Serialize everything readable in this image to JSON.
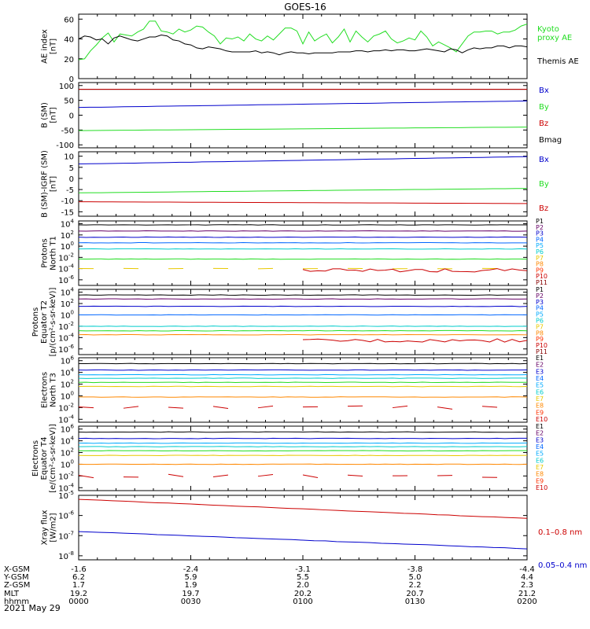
{
  "title": "GOES-16",
  "colors": {
    "black": "#000000",
    "blue": "#0000cc",
    "green": "#22dd22",
    "red": "#cc0000",
    "kyoto": "#22dd22",
    "cyan": "#00cccc",
    "yellow": "#e8c800",
    "orange": "#ff8800",
    "purple": "#8800aa",
    "darkred": "#880000",
    "skyblue": "#00aaff",
    "p_labels": [
      "#000000",
      "#660066",
      "#0000cc",
      "#0066ff",
      "#00aaff",
      "#00cccc",
      "#e8c800",
      "#ff8800",
      "#ff3300",
      "#cc0000",
      "#880000"
    ],
    "e_labels": [
      "#000000",
      "#660066",
      "#0000cc",
      "#0066ff",
      "#00aaff",
      "#00cccc",
      "#e8c800",
      "#ff8800",
      "#ff3300",
      "#cc0000"
    ]
  },
  "chart_data": [
    {
      "id": "ae",
      "type": "line",
      "ylabel": [
        "AE index",
        "[nT]"
      ],
      "yticks": [
        "60",
        "40",
        "20",
        "0"
      ],
      "ylim": [
        0,
        65
      ],
      "legend": [
        {
          "text": "Kyoto",
          "color": "#22dd22"
        },
        {
          "text": "proxy AE",
          "color": "#22dd22"
        },
        {
          "text": "Themis AE",
          "color": "#000000"
        }
      ],
      "series": [
        {
          "name": "Kyoto proxy AE",
          "color": "#22dd22",
          "values": [
            19,
            20,
            28,
            34,
            41,
            46,
            37,
            45,
            44,
            43,
            47,
            50,
            58,
            58,
            48,
            47,
            45,
            50,
            47,
            49,
            53,
            52,
            47,
            43,
            35,
            41,
            40,
            42,
            38,
            45,
            40,
            38,
            43,
            39,
            45,
            51,
            51,
            48,
            35,
            47,
            38,
            42,
            45,
            36,
            42,
            50,
            37,
            48,
            42,
            37,
            43,
            45,
            48,
            40,
            36,
            38,
            41,
            39,
            48,
            42,
            33,
            37,
            34,
            31,
            27,
            35,
            43,
            47,
            47,
            48,
            48,
            45,
            47,
            47,
            49,
            53,
            55
          ]
        },
        {
          "name": "Themis AE",
          "color": "#000000",
          "values": [
            40,
            43,
            42,
            39,
            40,
            35,
            41,
            43,
            41,
            39,
            38,
            40,
            42,
            42,
            44,
            43,
            39,
            38,
            35,
            34,
            31,
            30,
            32,
            31,
            30,
            28,
            27,
            27,
            27,
            27,
            28,
            26,
            27,
            26,
            24,
            26,
            27,
            26,
            26,
            25,
            26,
            26,
            26,
            26,
            27,
            27,
            27,
            28,
            28,
            27,
            28,
            28,
            29,
            28,
            29,
            29,
            28,
            28,
            29,
            30,
            29,
            28,
            27,
            30,
            29,
            26,
            29,
            31,
            30,
            31,
            31,
            33,
            33,
            31,
            33,
            33,
            32
          ]
        }
      ]
    },
    {
      "id": "bsm",
      "type": "line",
      "ylabel": [
        "B (SM)",
        "[nT]"
      ],
      "yticks": [
        "100",
        "50",
        "0",
        "-50",
        "-100"
      ],
      "ylim": [
        -110,
        110
      ],
      "legend": [
        {
          "text": "Bx",
          "color": "#0000cc"
        },
        {
          "text": "By",
          "color": "#22dd22"
        },
        {
          "text": "Bz",
          "color": "#cc0000"
        },
        {
          "text": "Bmag",
          "color": "#000000"
        }
      ],
      "series": [
        {
          "name": "Bmag",
          "color": "#000000",
          "start": 87,
          "end": 87
        },
        {
          "name": "Bz",
          "color": "#cc0000",
          "start": 87,
          "end": 87
        },
        {
          "name": "Bx",
          "color": "#0000cc",
          "start": 26,
          "end": 48
        },
        {
          "name": "By",
          "color": "#22dd22",
          "start": -52,
          "end": -40
        }
      ]
    },
    {
      "id": "bigrf",
      "type": "line",
      "ylabel": [
        "B (SM)-IGRF (SM)",
        "[nT]"
      ],
      "yticks": [
        "10",
        "5",
        "0",
        "-5",
        "-10",
        "-15"
      ],
      "ylim": [
        -17,
        12
      ],
      "legend": [
        {
          "text": "Bx",
          "color": "#0000cc"
        },
        {
          "text": "By",
          "color": "#22dd22"
        },
        {
          "text": "Bz",
          "color": "#cc0000"
        }
      ],
      "series": [
        {
          "name": "Bx",
          "color": "#0000cc",
          "start": 6.5,
          "end": 9.8
        },
        {
          "name": "By",
          "color": "#22dd22",
          "start": -6.5,
          "end": -4.5
        },
        {
          "name": "Bz",
          "color": "#cc0000",
          "start": -10.5,
          "end": -11.3
        }
      ]
    },
    {
      "id": "protn",
      "type": "line",
      "log": true,
      "ylabel": [
        "Protons",
        "North T1"
      ],
      "yticks": [
        {
          "b": "10",
          "e": "4"
        },
        {
          "b": "10",
          "e": "2"
        },
        {
          "b": "10",
          "e": "0"
        },
        {
          "b": "10",
          "e": "-2"
        },
        {
          "b": "10",
          "e": "-4"
        },
        {
          "b": "10",
          "e": "-6"
        }
      ],
      "ylim": [
        -7,
        4.5
      ],
      "legend": [
        "P1",
        "P2",
        "P3",
        "P4",
        "P5",
        "P6",
        "P7",
        "P8",
        "P9",
        "P10",
        "P11"
      ],
      "series": [
        {
          "name": "P1",
          "log_value": 3.8,
          "color": "#000000"
        },
        {
          "name": "P2",
          "log_value": 2.7,
          "color": "#660066"
        },
        {
          "name": "P3",
          "log_value": 1.6,
          "color": "#0000cc"
        },
        {
          "name": "P4",
          "log_value": 0.6,
          "color": "#0066ff"
        },
        {
          "name": "P5",
          "log_value": -0.5,
          "color": "#00cccc"
        },
        {
          "name": "P6",
          "log_value": -2.3,
          "color": "#22dd22"
        },
        {
          "name": "P8",
          "log_value": -4.0,
          "color": "#e8c800",
          "sparse": true
        },
        {
          "name": "P10",
          "log_value": -4.3,
          "color": "#cc0000",
          "from": 0.5
        }
      ]
    },
    {
      "id": "prote",
      "type": "line",
      "log": true,
      "ylabel": [
        "Protons",
        "Equator T2",
        "[p/(cm²-s-sr-keV)]"
      ],
      "yticks": [
        {
          "b": "10",
          "e": "4"
        },
        {
          "b": "10",
          "e": "2"
        },
        {
          "b": "10",
          "e": "0"
        },
        {
          "b": "10",
          "e": "-2"
        },
        {
          "b": "10",
          "e": "-4"
        },
        {
          "b": "10",
          "e": "-6"
        }
      ],
      "ylim": [
        -7,
        4.5
      ],
      "legend": [
        "P1",
        "P2",
        "P3",
        "P4",
        "P5",
        "P6",
        "P7",
        "P8",
        "P9",
        "P10",
        "P11"
      ],
      "series": [
        {
          "name": "P1",
          "log_value": 3.5,
          "color": "#000000"
        },
        {
          "name": "P2",
          "log_value": 2.8,
          "color": "#660066"
        },
        {
          "name": "P3",
          "log_value": 1.5,
          "color": "#0000cc"
        },
        {
          "name": "P4",
          "log_value": 0.0,
          "color": "#0066ff"
        },
        {
          "name": "P5",
          "log_value": -2.0,
          "color": "#00cccc"
        },
        {
          "name": "P6",
          "log_value": -2.8,
          "color": "#22dd22"
        },
        {
          "name": "P8",
          "log_value": -3.5,
          "color": "#ff8800"
        },
        {
          "name": "P10",
          "log_value": -4.5,
          "color": "#cc0000",
          "from": 0.5
        }
      ]
    },
    {
      "id": "elecn",
      "type": "line",
      "log": true,
      "ylabel": [
        "Electrons",
        "North T3"
      ],
      "yticks": [
        {
          "b": "10",
          "e": "6"
        },
        {
          "b": "10",
          "e": "4"
        },
        {
          "b": "10",
          "e": "2"
        },
        {
          "b": "10",
          "e": "0"
        },
        {
          "b": "10",
          "e": "-2"
        },
        {
          "b": "10",
          "e": "-4"
        }
      ],
      "ylim": [
        -4.5,
        6.5
      ],
      "legend": [
        "E1",
        "E2",
        "E3",
        "E4",
        "E5",
        "E6",
        "E7",
        "E8",
        "E9",
        "E10"
      ],
      "series": [
        {
          "name": "E1",
          "log_value": 5.5,
          "color": "#000000"
        },
        {
          "name": "E2",
          "log_value": 4.4,
          "color": "#0000cc"
        },
        {
          "name": "E3",
          "log_value": 3.6,
          "color": "#00aaff"
        },
        {
          "name": "E4",
          "log_value": 3.0,
          "color": "#00cccc"
        },
        {
          "name": "E5",
          "log_value": 2.3,
          "color": "#22dd22"
        },
        {
          "name": "E6",
          "log_value": 1.6,
          "color": "#e8c800"
        },
        {
          "name": "E7",
          "log_value": -0.2,
          "color": "#ff8800"
        },
        {
          "name": "E10",
          "log_value": -2.0,
          "color": "#cc0000",
          "sparse": true
        }
      ]
    },
    {
      "id": "elece",
      "type": "line",
      "log": true,
      "ylabel": [
        "Electrons",
        "Equator T4",
        "[e/(cm²-s-sr-keV)]"
      ],
      "yticks": [
        {
          "b": "10",
          "e": "6"
        },
        {
          "b": "10",
          "e": "4"
        },
        {
          "b": "10",
          "e": "2"
        },
        {
          "b": "10",
          "e": "0"
        },
        {
          "b": "10",
          "e": "-2"
        },
        {
          "b": "10",
          "e": "-4"
        }
      ],
      "ylim": [
        -4.5,
        6.5
      ],
      "legend": [
        "E1",
        "E2",
        "E3",
        "E4",
        "E5",
        "E6",
        "E7",
        "E8",
        "E9",
        "E10"
      ],
      "series": [
        {
          "name": "E1",
          "log_value": 5.5,
          "color": "#000000"
        },
        {
          "name": "E2",
          "log_value": 4.4,
          "color": "#0000cc"
        },
        {
          "name": "E3",
          "log_value": 3.6,
          "color": "#00aaff"
        },
        {
          "name": "E4",
          "log_value": 3.0,
          "color": "#00cccc"
        },
        {
          "name": "E5",
          "log_value": 2.3,
          "color": "#22dd22"
        },
        {
          "name": "E6",
          "log_value": 1.5,
          "color": "#e8c800"
        },
        {
          "name": "E7",
          "log_value": 0.0,
          "color": "#ff8800"
        },
        {
          "name": "E10",
          "log_value": -2.0,
          "color": "#cc0000",
          "sparse": true
        }
      ]
    },
    {
      "id": "xray",
      "type": "line",
      "log": true,
      "ylabel": [
        "Xray flux",
        "[W/m2]"
      ],
      "yticks": [
        {
          "b": "10",
          "e": "-5"
        },
        {
          "b": "10",
          "e": "-6"
        },
        {
          "b": "10",
          "e": "-7"
        },
        {
          "b": "10",
          "e": "-8"
        }
      ],
      "ylim": [
        -8.2,
        -5
      ],
      "legend": [
        {
          "text": "0.1–0.8 nm",
          "color": "#cc0000"
        },
        {
          "text": "0.05–0.4 nm",
          "color": "#0000cc"
        }
      ],
      "series": [
        {
          "name": "0.1-0.8 nm",
          "color": "#cc0000",
          "start": -5.2,
          "end": -6.15
        },
        {
          "name": "0.05-0.4 nm",
          "color": "#0000cc",
          "start": -6.8,
          "end": -7.65
        }
      ]
    }
  ],
  "xaxis": {
    "row_labels": [
      "X-GSM",
      "Y-GSM",
      "Z-GSM",
      "MLT",
      "hhmm"
    ],
    "columns": [
      [
        "-1.6",
        "6.2",
        "1.7",
        "19.2",
        "0000"
      ],
      [
        "-2.4",
        "5.9",
        "1.9",
        "19.7",
        "0030"
      ],
      [
        "-3.1",
        "5.5",
        "2.0",
        "20.2",
        "0100"
      ],
      [
        "-3.8",
        "5.0",
        "2.2",
        "20.7",
        "0130"
      ],
      [
        "-4.4",
        "4.4",
        "2.3",
        "21.2",
        "0200"
      ]
    ],
    "date": "2021 May 29"
  }
}
